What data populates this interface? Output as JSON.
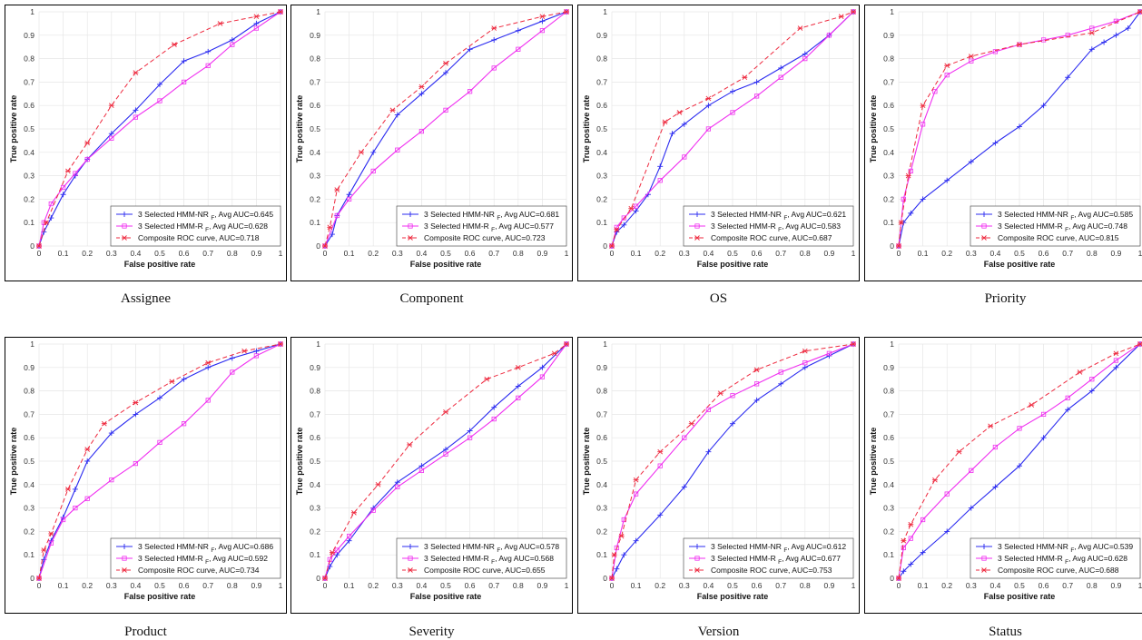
{
  "colors": {
    "nr": "#2b2bf0",
    "r": "#f02ff0",
    "composite": "#ee2a3f"
  },
  "legend_labels": {
    "nr_prefix": "3 Selected HMM-NR",
    "r_prefix": "3 Selected HMM-R",
    "subscript": "F",
    "avg_label": ", Avg AUC=",
    "composite_prefix": "Composite ROC curve, AUC="
  },
  "chart_data": [
    {
      "type": "line",
      "caption": "Assignee",
      "xlabel": "False positive rate",
      "ylabel": "True positive rate",
      "xlim": [
        0,
        1
      ],
      "ylim": [
        0,
        1
      ],
      "grid": true,
      "legend_placement": "bottom-right",
      "xticks": [
        "0",
        "0.1",
        "0.2",
        "0.3",
        "0.4",
        "0.5",
        "0.6",
        "0.7",
        "0.8",
        "0.9",
        "1"
      ],
      "yticks": [
        "0",
        "0.1",
        "0.2",
        "0.3",
        "0.4",
        "0.5",
        "0.6",
        "0.7",
        "0.8",
        "0.9",
        "1"
      ],
      "auc": {
        "nr": "0.645",
        "r": "0.628",
        "composite": "0.718"
      },
      "series": [
        {
          "key": "nr",
          "x": [
            0,
            0.02,
            0.05,
            0.1,
            0.15,
            0.2,
            0.3,
            0.4,
            0.5,
            0.6,
            0.7,
            0.8,
            0.9,
            1
          ],
          "y": [
            0,
            0.06,
            0.12,
            0.22,
            0.3,
            0.37,
            0.48,
            0.58,
            0.69,
            0.79,
            0.83,
            0.88,
            0.95,
            1
          ]
        },
        {
          "key": "r",
          "x": [
            0,
            0.02,
            0.05,
            0.1,
            0.15,
            0.2,
            0.3,
            0.4,
            0.5,
            0.6,
            0.7,
            0.8,
            0.9,
            1
          ],
          "y": [
            0,
            0.1,
            0.18,
            0.25,
            0.31,
            0.37,
            0.46,
            0.55,
            0.62,
            0.7,
            0.77,
            0.86,
            0.93,
            1
          ]
        },
        {
          "key": "composite",
          "x": [
            0,
            0.03,
            0.12,
            0.2,
            0.3,
            0.4,
            0.56,
            0.75,
            0.9,
            1
          ],
          "y": [
            0,
            0.1,
            0.32,
            0.44,
            0.6,
            0.74,
            0.86,
            0.95,
            0.98,
            1
          ]
        }
      ]
    },
    {
      "type": "line",
      "caption": "Component",
      "xlabel": "False positive rate",
      "ylabel": "True positive rate",
      "xlim": [
        0,
        1
      ],
      "ylim": [
        0,
        1
      ],
      "grid": true,
      "legend_placement": "bottom-right",
      "xticks": [
        "0",
        "0.1",
        "0.2",
        "0.3",
        "0.4",
        "0.5",
        "0.6",
        "0.7",
        "0.8",
        "0.9",
        "1"
      ],
      "yticks": [
        "0",
        "0.1",
        "0.2",
        "0.3",
        "0.4",
        "0.5",
        "0.6",
        "0.7",
        "0.8",
        "0.9",
        "1"
      ],
      "auc": {
        "nr": "0.681",
        "r": "0.577",
        "composite": "0.723"
      },
      "series": [
        {
          "key": "nr",
          "x": [
            0,
            0.03,
            0.05,
            0.1,
            0.2,
            0.3,
            0.4,
            0.5,
            0.6,
            0.7,
            0.8,
            0.9,
            1
          ],
          "y": [
            0,
            0.05,
            0.13,
            0.22,
            0.4,
            0.56,
            0.65,
            0.74,
            0.84,
            0.88,
            0.92,
            0.96,
            1
          ]
        },
        {
          "key": "r",
          "x": [
            0,
            0.05,
            0.1,
            0.2,
            0.3,
            0.4,
            0.5,
            0.6,
            0.7,
            0.8,
            0.9,
            1
          ],
          "y": [
            0,
            0.13,
            0.2,
            0.32,
            0.41,
            0.49,
            0.58,
            0.66,
            0.76,
            0.84,
            0.92,
            1
          ]
        },
        {
          "key": "composite",
          "x": [
            0,
            0.02,
            0.05,
            0.15,
            0.28,
            0.4,
            0.5,
            0.7,
            0.9,
            1
          ],
          "y": [
            0,
            0.08,
            0.24,
            0.4,
            0.58,
            0.68,
            0.78,
            0.93,
            0.98,
            1
          ]
        }
      ]
    },
    {
      "type": "line",
      "caption": "OS",
      "xlabel": "False positive rate",
      "ylabel": "True positive rate",
      "xlim": [
        0,
        1
      ],
      "ylim": [
        0,
        1
      ],
      "grid": true,
      "legend_placement": "bottom-right",
      "xticks": [
        "0",
        "0.1",
        "0.2",
        "0.3",
        "0.4",
        "0.5",
        "0.6",
        "0.7",
        "0.8",
        "0.9",
        "1"
      ],
      "yticks": [
        "0",
        "0.1",
        "0.2",
        "0.3",
        "0.4",
        "0.5",
        "0.6",
        "0.7",
        "0.8",
        "0.9",
        "1"
      ],
      "auc": {
        "nr": "0.621",
        "r": "0.583",
        "composite": "0.687"
      },
      "series": [
        {
          "key": "nr",
          "x": [
            0,
            0.02,
            0.05,
            0.1,
            0.15,
            0.2,
            0.25,
            0.3,
            0.4,
            0.5,
            0.6,
            0.7,
            0.8,
            0.9,
            1
          ],
          "y": [
            0,
            0.06,
            0.09,
            0.15,
            0.22,
            0.34,
            0.48,
            0.52,
            0.6,
            0.66,
            0.7,
            0.76,
            0.82,
            0.9,
            1
          ]
        },
        {
          "key": "r",
          "x": [
            0,
            0.02,
            0.05,
            0.1,
            0.2,
            0.3,
            0.4,
            0.5,
            0.6,
            0.7,
            0.8,
            0.9,
            1
          ],
          "y": [
            0,
            0.08,
            0.12,
            0.17,
            0.28,
            0.38,
            0.5,
            0.57,
            0.64,
            0.72,
            0.8,
            0.9,
            1
          ]
        },
        {
          "key": "composite",
          "x": [
            0,
            0.02,
            0.08,
            0.22,
            0.28,
            0.4,
            0.55,
            0.78,
            0.95,
            1
          ],
          "y": [
            0,
            0.07,
            0.16,
            0.53,
            0.57,
            0.63,
            0.72,
            0.93,
            0.98,
            1
          ]
        }
      ]
    },
    {
      "type": "line",
      "caption": "Priority",
      "xlabel": "False positive rate",
      "ylabel": "True positive rate",
      "xlim": [
        0,
        1
      ],
      "ylim": [
        0,
        1
      ],
      "grid": true,
      "legend_placement": "bottom-right",
      "xticks": [
        "0",
        "0.1",
        "0.2",
        "0.3",
        "0.4",
        "0.5",
        "0.6",
        "0.7",
        "0.8",
        "0.9",
        "1"
      ],
      "yticks": [
        "0",
        "0.1",
        "0.2",
        "0.3",
        "0.4",
        "0.5",
        "0.6",
        "0.7",
        "0.8",
        "0.9",
        "1"
      ],
      "auc": {
        "nr": "0.585",
        "r": "0.748",
        "composite": "0.815"
      },
      "series": [
        {
          "key": "nr",
          "x": [
            0,
            0.02,
            0.05,
            0.1,
            0.2,
            0.3,
            0.4,
            0.5,
            0.6,
            0.7,
            0.8,
            0.85,
            0.9,
            0.95,
            1
          ],
          "y": [
            0,
            0.1,
            0.14,
            0.2,
            0.28,
            0.36,
            0.44,
            0.51,
            0.6,
            0.72,
            0.84,
            0.87,
            0.9,
            0.93,
            1
          ]
        },
        {
          "key": "r",
          "x": [
            0,
            0.02,
            0.05,
            0.1,
            0.15,
            0.2,
            0.3,
            0.4,
            0.5,
            0.6,
            0.7,
            0.8,
            0.9,
            1
          ],
          "y": [
            0,
            0.2,
            0.32,
            0.52,
            0.66,
            0.73,
            0.79,
            0.83,
            0.86,
            0.88,
            0.9,
            0.93,
            0.96,
            1
          ]
        },
        {
          "key": "composite",
          "x": [
            0,
            0.01,
            0.04,
            0.1,
            0.2,
            0.3,
            0.5,
            0.8,
            1
          ],
          "y": [
            0,
            0.1,
            0.3,
            0.6,
            0.77,
            0.81,
            0.86,
            0.91,
            1
          ]
        }
      ]
    },
    {
      "type": "line",
      "caption": "Product",
      "xlabel": "False positive rate",
      "ylabel": "True positive rate",
      "xlim": [
        0,
        1
      ],
      "ylim": [
        0,
        1
      ],
      "grid": true,
      "legend_placement": "bottom-right",
      "xticks": [
        "0",
        "0.1",
        "0.2",
        "0.3",
        "0.4",
        "0.5",
        "0.6",
        "0.7",
        "0.8",
        "0.9",
        "1"
      ],
      "yticks": [
        "0",
        "0.1",
        "0.2",
        "0.3",
        "0.4",
        "0.5",
        "0.6",
        "0.7",
        "0.8",
        "0.9",
        "1"
      ],
      "auc": {
        "nr": "0.686",
        "r": "0.592",
        "composite": "0.734"
      },
      "series": [
        {
          "key": "nr",
          "x": [
            0,
            0.02,
            0.05,
            0.1,
            0.15,
            0.2,
            0.3,
            0.4,
            0.5,
            0.6,
            0.7,
            0.8,
            0.9,
            1
          ],
          "y": [
            0,
            0.08,
            0.16,
            0.26,
            0.38,
            0.5,
            0.62,
            0.7,
            0.77,
            0.85,
            0.9,
            0.94,
            0.97,
            1
          ]
        },
        {
          "key": "r",
          "x": [
            0,
            0.05,
            0.1,
            0.15,
            0.2,
            0.3,
            0.4,
            0.5,
            0.6,
            0.7,
            0.8,
            0.9,
            1
          ],
          "y": [
            0,
            0.15,
            0.25,
            0.3,
            0.34,
            0.42,
            0.49,
            0.58,
            0.66,
            0.76,
            0.88,
            0.95,
            1
          ]
        },
        {
          "key": "composite",
          "x": [
            0,
            0.02,
            0.05,
            0.12,
            0.2,
            0.27,
            0.4,
            0.55,
            0.7,
            0.85,
            1
          ],
          "y": [
            0,
            0.12,
            0.19,
            0.38,
            0.55,
            0.66,
            0.75,
            0.84,
            0.92,
            0.97,
            1
          ]
        }
      ]
    },
    {
      "type": "line",
      "caption": "Severity",
      "xlabel": "False positive rate",
      "ylabel": "True positive rate",
      "xlim": [
        0,
        1
      ],
      "ylim": [
        0,
        1
      ],
      "grid": true,
      "legend_placement": "bottom-right",
      "xticks": [
        "0",
        "0.1",
        "0.2",
        "0.3",
        "0.4",
        "0.5",
        "0.6",
        "0.7",
        "0.8",
        "0.9",
        "1"
      ],
      "yticks": [
        "0",
        "0.1",
        "0.2",
        "0.3",
        "0.4",
        "0.5",
        "0.6",
        "0.7",
        "0.8",
        "0.9",
        "1"
      ],
      "auc": {
        "nr": "0.578",
        "r": "0.568",
        "composite": "0.655"
      },
      "series": [
        {
          "key": "nr",
          "x": [
            0,
            0.02,
            0.05,
            0.1,
            0.2,
            0.3,
            0.4,
            0.5,
            0.6,
            0.7,
            0.8,
            0.9,
            1
          ],
          "y": [
            0,
            0.05,
            0.1,
            0.16,
            0.3,
            0.41,
            0.48,
            0.55,
            0.63,
            0.73,
            0.82,
            0.9,
            1
          ]
        },
        {
          "key": "r",
          "x": [
            0,
            0.02,
            0.05,
            0.1,
            0.2,
            0.3,
            0.4,
            0.5,
            0.6,
            0.7,
            0.8,
            0.9,
            1
          ],
          "y": [
            0,
            0.08,
            0.12,
            0.18,
            0.29,
            0.39,
            0.46,
            0.53,
            0.6,
            0.68,
            0.77,
            0.86,
            1
          ]
        },
        {
          "key": "composite",
          "x": [
            0,
            0.03,
            0.12,
            0.22,
            0.35,
            0.5,
            0.67,
            0.8,
            0.95,
            1
          ],
          "y": [
            0,
            0.11,
            0.28,
            0.4,
            0.57,
            0.71,
            0.85,
            0.9,
            0.96,
            1
          ]
        }
      ]
    },
    {
      "type": "line",
      "caption": "Version",
      "xlabel": "False positive rate",
      "ylabel": "True positive rate",
      "xlim": [
        0,
        1
      ],
      "ylim": [
        0,
        1
      ],
      "grid": true,
      "legend_placement": "bottom-right",
      "xticks": [
        "0",
        "0.1",
        "0.2",
        "0.3",
        "0.4",
        "0.5",
        "0.6",
        "0.7",
        "0.8",
        "0.9",
        "1"
      ],
      "yticks": [
        "0",
        "0.1",
        "0.2",
        "0.3",
        "0.4",
        "0.5",
        "0.6",
        "0.7",
        "0.8",
        "0.9",
        "1"
      ],
      "auc": {
        "nr": "0.612",
        "r": "0.677",
        "composite": "0.753"
      },
      "series": [
        {
          "key": "nr",
          "x": [
            0,
            0.02,
            0.05,
            0.1,
            0.2,
            0.3,
            0.4,
            0.5,
            0.6,
            0.7,
            0.8,
            0.9,
            1
          ],
          "y": [
            0,
            0.04,
            0.1,
            0.16,
            0.27,
            0.39,
            0.54,
            0.66,
            0.76,
            0.83,
            0.9,
            0.95,
            1
          ]
        },
        {
          "key": "r",
          "x": [
            0,
            0.02,
            0.05,
            0.1,
            0.2,
            0.3,
            0.4,
            0.5,
            0.6,
            0.7,
            0.8,
            0.9,
            1
          ],
          "y": [
            0,
            0.13,
            0.25,
            0.36,
            0.48,
            0.6,
            0.72,
            0.78,
            0.83,
            0.88,
            0.92,
            0.96,
            1
          ]
        },
        {
          "key": "composite",
          "x": [
            0,
            0.01,
            0.04,
            0.1,
            0.2,
            0.33,
            0.45,
            0.6,
            0.8,
            1
          ],
          "y": [
            0,
            0.1,
            0.18,
            0.42,
            0.54,
            0.66,
            0.79,
            0.89,
            0.97,
            1
          ]
        }
      ]
    },
    {
      "type": "line",
      "caption": "Status",
      "xlabel": "False positive rate",
      "ylabel": "True positive rate",
      "xlim": [
        0,
        1
      ],
      "ylim": [
        0,
        1
      ],
      "grid": true,
      "legend_placement": "bottom-right",
      "xticks": [
        "0",
        "0.1",
        "0.2",
        "0.3",
        "0.4",
        "0.5",
        "0.6",
        "0.7",
        "0.8",
        "0.9",
        "1"
      ],
      "yticks": [
        "0",
        "0.1",
        "0.2",
        "0.3",
        "0.4",
        "0.5",
        "0.6",
        "0.7",
        "0.8",
        "0.9",
        "1"
      ],
      "auc": {
        "nr": "0.539",
        "r": "0.628",
        "composite": "0.688"
      },
      "series": [
        {
          "key": "nr",
          "x": [
            0,
            0.02,
            0.05,
            0.1,
            0.2,
            0.3,
            0.4,
            0.5,
            0.6,
            0.7,
            0.8,
            0.9,
            1
          ],
          "y": [
            0,
            0.03,
            0.06,
            0.11,
            0.2,
            0.3,
            0.39,
            0.48,
            0.6,
            0.72,
            0.8,
            0.9,
            1
          ]
        },
        {
          "key": "r",
          "x": [
            0,
            0.02,
            0.05,
            0.1,
            0.2,
            0.3,
            0.4,
            0.5,
            0.6,
            0.7,
            0.8,
            0.9,
            1
          ],
          "y": [
            0,
            0.13,
            0.17,
            0.25,
            0.36,
            0.46,
            0.56,
            0.64,
            0.7,
            0.77,
            0.85,
            0.93,
            1
          ]
        },
        {
          "key": "composite",
          "x": [
            0,
            0.02,
            0.05,
            0.15,
            0.25,
            0.38,
            0.55,
            0.75,
            0.9,
            1
          ],
          "y": [
            0,
            0.16,
            0.23,
            0.42,
            0.54,
            0.65,
            0.74,
            0.88,
            0.96,
            1
          ]
        }
      ]
    }
  ]
}
